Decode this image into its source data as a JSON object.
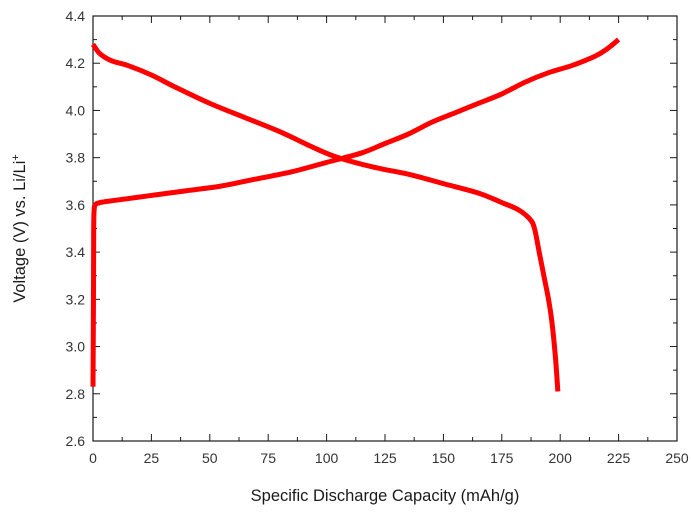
{
  "chart_data": {
    "type": "line",
    "xlabel": "Specific Discharge Capacity (mAh/g)",
    "ylabel": "Voltage (V) vs. Li/Li",
    "ylabel_superscript": "+",
    "xlim": [
      0,
      250
    ],
    "ylim": [
      2.6,
      4.4
    ],
    "x_ticks": [
      0,
      25,
      50,
      75,
      100,
      125,
      150,
      175,
      200,
      225,
      250
    ],
    "y_ticks": [
      "2.6",
      "2.8",
      "3.0",
      "3.2",
      "3.4",
      "3.6",
      "3.8",
      "4.0",
      "4.2",
      "4.4"
    ],
    "grid": false,
    "legend": "none",
    "series": [
      {
        "color": "#ff0000",
        "points": [
          [
            0,
            2.83
          ],
          [
            0.2,
            3.2
          ],
          [
            0.3,
            3.5
          ],
          [
            0.5,
            3.58
          ],
          [
            1,
            3.6
          ],
          [
            3,
            3.61
          ],
          [
            10,
            3.62
          ],
          [
            25,
            3.64
          ],
          [
            40,
            3.66
          ],
          [
            55,
            3.68
          ],
          [
            70,
            3.71
          ],
          [
            85,
            3.74
          ],
          [
            100,
            3.78
          ],
          [
            115,
            3.82
          ],
          [
            125,
            3.86
          ],
          [
            135,
            3.9
          ],
          [
            145,
            3.95
          ],
          [
            155,
            3.99
          ],
          [
            165,
            4.03
          ],
          [
            175,
            4.07
          ],
          [
            185,
            4.12
          ],
          [
            195,
            4.16
          ],
          [
            205,
            4.19
          ],
          [
            215,
            4.23
          ],
          [
            220,
            4.26
          ],
          [
            225,
            4.3
          ]
        ]
      },
      {
        "color": "#ff0000",
        "points": [
          [
            0,
            4.28
          ],
          [
            3,
            4.24
          ],
          [
            8,
            4.21
          ],
          [
            15,
            4.19
          ],
          [
            25,
            4.15
          ],
          [
            35,
            4.1
          ],
          [
            50,
            4.03
          ],
          [
            65,
            3.97
          ],
          [
            80,
            3.91
          ],
          [
            95,
            3.84
          ],
          [
            105,
            3.8
          ],
          [
            120,
            3.76
          ],
          [
            135,
            3.73
          ],
          [
            150,
            3.69
          ],
          [
            165,
            3.65
          ],
          [
            175,
            3.61
          ],
          [
            182,
            3.58
          ],
          [
            187,
            3.54
          ],
          [
            189,
            3.5
          ],
          [
            191,
            3.4
          ],
          [
            193,
            3.3
          ],
          [
            195,
            3.2
          ],
          [
            196.5,
            3.1
          ],
          [
            198,
            2.95
          ],
          [
            199,
            2.81
          ]
        ]
      }
    ]
  },
  "colors": {
    "axis": "#1a1a1a",
    "series": "#ff0000",
    "background": "#ffffff"
  }
}
